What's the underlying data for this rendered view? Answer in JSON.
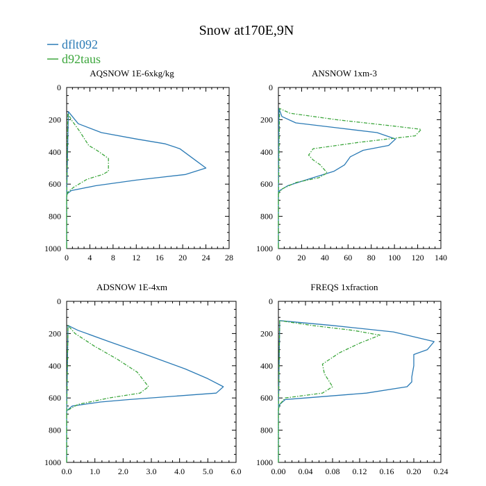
{
  "figure": {
    "title": "Snow at170E,9N",
    "colors": {
      "dflt092": "#2a7ab5",
      "d92taus": "#3ca63c"
    }
  },
  "legend": {
    "entries": [
      {
        "name": "dflt092",
        "color": "#2a7ab5",
        "style": "solid"
      },
      {
        "name": "d92taus",
        "color": "#3ca63c",
        "style": "dashed"
      }
    ]
  },
  "chart_data": [
    {
      "type": "line",
      "title": "AQSNOW  1E-6xkg/kg",
      "xlim": [
        0,
        28
      ],
      "ylim": [
        1000,
        0
      ],
      "xticks": [
        0,
        4,
        8,
        12,
        16,
        20,
        24,
        28
      ],
      "xtick_labels": [
        "0",
        "4",
        "8",
        "12",
        "16",
        "20",
        "24",
        "28"
      ],
      "yticks": [
        0,
        200,
        400,
        600,
        800,
        1000
      ],
      "ytick_labels": [
        "0",
        "200",
        "400",
        "600",
        "800",
        "1000"
      ],
      "series": [
        {
          "name": "dflt092",
          "x": [
            0,
            0,
            0.3,
            2,
            6,
            12,
            17,
            19.5,
            22.5,
            24,
            20.5,
            12,
            5,
            0.8,
            0.1,
            0,
            0
          ],
          "y": [
            1000,
            700,
            150,
            225,
            280,
            320,
            350,
            380,
            460,
            500,
            540,
            575,
            610,
            640,
            660,
            680,
            1000
          ]
        },
        {
          "name": "d92taus",
          "x": [
            0,
            0,
            0.2,
            0.8,
            2.2,
            3.8,
            5.2,
            7.2,
            7.2,
            6.2,
            3.5,
            1.2,
            0.2,
            0,
            0
          ],
          "y": [
            1000,
            700,
            160,
            200,
            270,
            360,
            390,
            440,
            520,
            540,
            570,
            620,
            650,
            680,
            1000
          ]
        }
      ]
    },
    {
      "type": "line",
      "title": "ANSNOW  1xm-3",
      "xlim": [
        0,
        140
      ],
      "ylim": [
        1000,
        0
      ],
      "xticks": [
        0,
        20,
        40,
        60,
        80,
        100,
        120,
        140
      ],
      "xtick_labels": [
        "0",
        "20",
        "40",
        "60",
        "80",
        "100",
        "120",
        "140"
      ],
      "yticks": [
        0,
        200,
        400,
        600,
        800,
        1000
      ],
      "ytick_labels": [
        "0",
        "200",
        "400",
        "600",
        "800",
        "1000"
      ],
      "series": [
        {
          "name": "dflt092",
          "x": [
            0,
            0,
            0.5,
            3,
            15,
            50,
            85,
            101,
            95,
            73,
            62,
            57,
            48,
            30,
            8,
            1,
            0,
            0
          ],
          "y": [
            1000,
            700,
            130,
            180,
            220,
            250,
            280,
            320,
            360,
            390,
            430,
            480,
            520,
            560,
            610,
            640,
            660,
            1000
          ]
        },
        {
          "name": "d92taus",
          "x": [
            0,
            0,
            1,
            10,
            50,
            100,
            123,
            118,
            70,
            30,
            26,
            30,
            36,
            42,
            35,
            15,
            3,
            0,
            0
          ],
          "y": [
            1000,
            700,
            130,
            160,
            200,
            240,
            260,
            300,
            340,
            380,
            420,
            450,
            480,
            530,
            560,
            590,
            630,
            660,
            1000
          ]
        }
      ]
    },
    {
      "type": "line",
      "title": "ADSNOW  1E-4xm",
      "xlim": [
        0,
        6
      ],
      "ylim": [
        1000,
        0
      ],
      "xticks": [
        0,
        1,
        2,
        3,
        4,
        5,
        6
      ],
      "xtick_labels": [
        "0.0",
        "1.0",
        "2.0",
        "3.0",
        "4.0",
        "5.0",
        "6.0"
      ],
      "yticks": [
        0,
        200,
        400,
        600,
        800,
        1000
      ],
      "ytick_labels": [
        "0",
        "200",
        "400",
        "600",
        "800",
        "1000"
      ],
      "series": [
        {
          "name": "dflt092",
          "x": [
            0,
            0,
            0.05,
            0.4,
            1.5,
            2.8,
            4.2,
            5.0,
            5.55,
            5.3,
            2.2,
            1.2,
            0.2,
            0,
            0
          ],
          "y": [
            1000,
            700,
            150,
            180,
            250,
            330,
            420,
            480,
            530,
            570,
            610,
            625,
            650,
            680,
            1000
          ]
        },
        {
          "name": "d92taus",
          "x": [
            0,
            0,
            0.05,
            0.3,
            1.0,
            1.8,
            2.5,
            2.9,
            2.6,
            1.5,
            0.4,
            0,
            0
          ],
          "y": [
            1000,
            700,
            150,
            200,
            280,
            360,
            440,
            530,
            570,
            600,
            640,
            680,
            1000
          ]
        }
      ]
    },
    {
      "type": "line",
      "title": "FREQS  1xfraction",
      "xlim": [
        0,
        0.24
      ],
      "ylim": [
        1000,
        0
      ],
      "xticks": [
        0,
        0.04,
        0.08,
        0.12,
        0.16,
        0.2,
        0.24
      ],
      "xtick_labels": [
        "0.00",
        "0.04",
        "0.08",
        "0.12",
        "0.16",
        "0.20",
        "0.24"
      ],
      "yticks": [
        0,
        200,
        400,
        600,
        800,
        1000
      ],
      "ytick_labels": [
        "0",
        "200",
        "400",
        "600",
        "800",
        "1000"
      ],
      "series": [
        {
          "name": "dflt092",
          "x": [
            0,
            0,
            0.002,
            0.08,
            0.17,
            0.23,
            0.22,
            0.2,
            0.2,
            0.197,
            0.197,
            0.19,
            0.13,
            0.04,
            0.01,
            0.002,
            0,
            0
          ],
          "y": [
            1000,
            700,
            120,
            150,
            190,
            250,
            300,
            330,
            400,
            470,
            500,
            530,
            570,
            600,
            610,
            640,
            670,
            1000
          ]
        },
        {
          "name": "d92taus",
          "x": [
            0,
            0,
            0.002,
            0.05,
            0.11,
            0.15,
            0.12,
            0.09,
            0.065,
            0.068,
            0.08,
            0.065,
            0.01,
            0.002,
            0,
            0
          ],
          "y": [
            1000,
            700,
            120,
            150,
            180,
            210,
            260,
            320,
            390,
            450,
            530,
            570,
            600,
            640,
            670,
            1000
          ]
        }
      ]
    }
  ]
}
